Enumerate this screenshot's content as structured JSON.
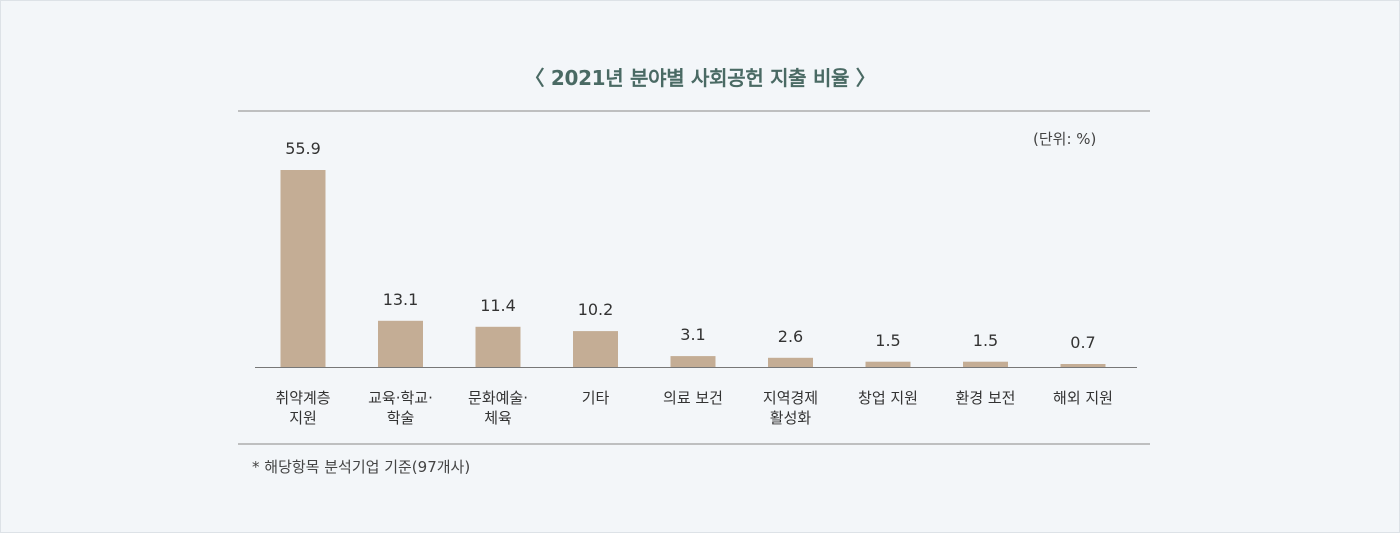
{
  "chart_data": {
    "type": "bar",
    "title": "〈 2021년 분야별 사회공헌 지출 비율 〉",
    "unit": "(단위: %)",
    "categories": [
      "취약계층\n지원",
      "교육·학교·\n학술",
      "문화예술·\n체육",
      "기타",
      "의료 보건",
      "지역경제\n활성화",
      "창업 지원",
      "환경 보전",
      "해외 지원"
    ],
    "values": [
      55.9,
      13.1,
      11.4,
      10.2,
      3.1,
      2.6,
      1.5,
      1.5,
      0.7
    ],
    "value_labels": [
      "55.9",
      "13.1",
      "11.4",
      "10.2",
      "3.1",
      "2.6",
      "1.5",
      "1.5",
      "0.7"
    ],
    "xlabel": "",
    "ylabel": "",
    "ylim": [
      0,
      55.9
    ],
    "grid": false,
    "bar_color": "#c4ad95",
    "footnote": "* 해당항목 분석기업 기준(97개사)"
  }
}
